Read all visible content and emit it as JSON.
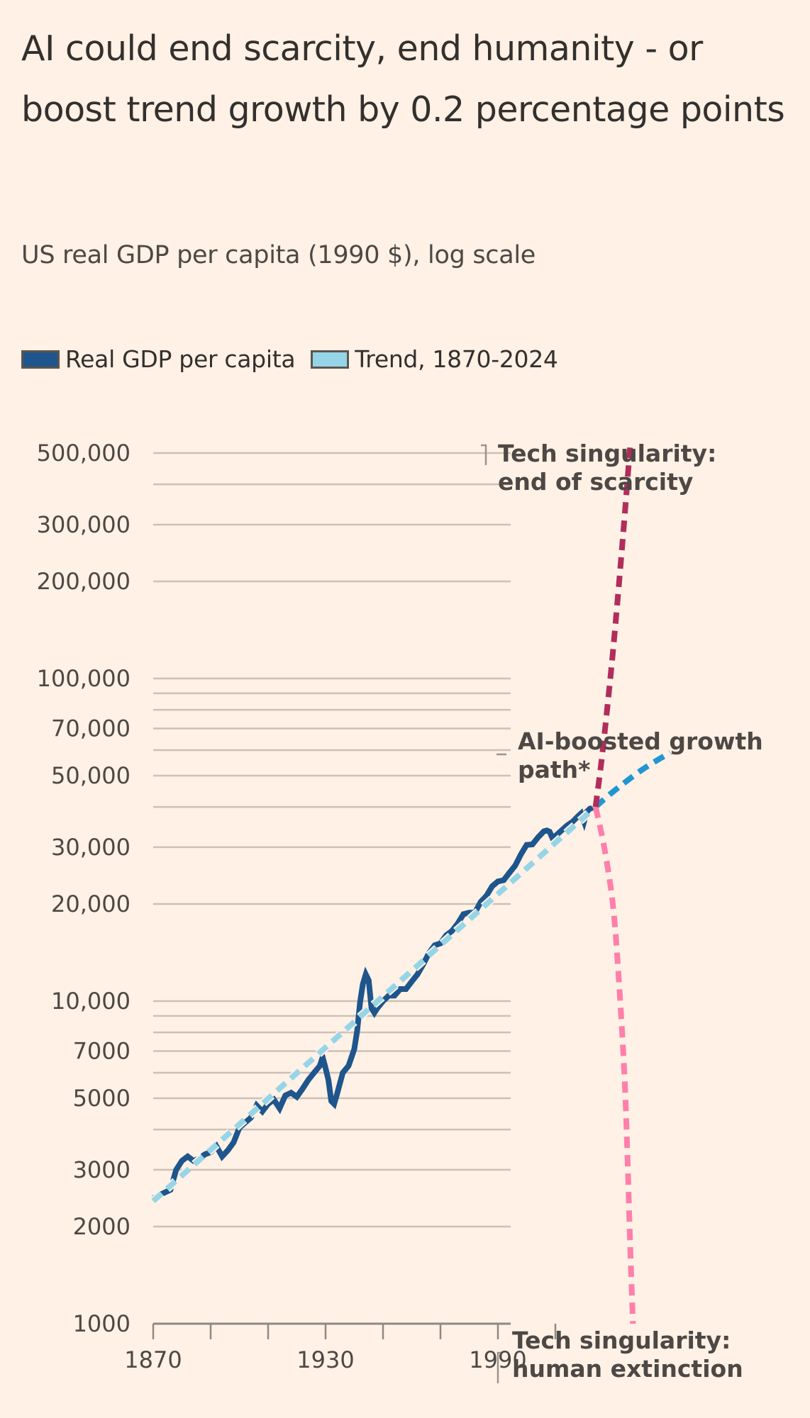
{
  "title": "AI could end scarcity, end humanity - or boost trend growth by 0.2 percentage points",
  "subtitle": "US real GDP per capita (1990 $), log scale",
  "legend": [
    {
      "label": "Real GDP per capita",
      "color": "#1e558c"
    },
    {
      "label": "Trend, 1870-2024",
      "color": "#96d5e8"
    }
  ],
  "colors": {
    "background": "#fff1e5",
    "gridline": "#ccc1b7",
    "axis": "#8f8984",
    "gdp": "#1e558c",
    "trend": "#96d5e8",
    "ai_boosted": "#2196d2",
    "scarcity": "#b12d5b",
    "extinction": "#ff7faa"
  },
  "chart_data": {
    "type": "line",
    "title": "AI could end scarcity, end humanity - or boost trend growth by 0.2 percentage points",
    "subtitle": "US real GDP per capita (1990 $), log scale",
    "xlabel": "",
    "ylabel": "",
    "yscale": "log",
    "xlim": [
      1870,
      2050
    ],
    "ylim": [
      1000,
      500000
    ],
    "grid": true,
    "legend_position": "top-left",
    "x_ticks": [
      1870,
      1890,
      1910,
      1930,
      1950,
      1970,
      1990,
      2010
    ],
    "x_tick_labels": [
      {
        "value": 1870,
        "label": "1870"
      },
      {
        "value": 1930,
        "label": "1930"
      },
      {
        "value": 1990,
        "label": "1990"
      }
    ],
    "y_gridlines": [
      1000,
      2000,
      3000,
      4000,
      5000,
      6000,
      7000,
      8000,
      9000,
      10000,
      20000,
      30000,
      40000,
      50000,
      60000,
      70000,
      80000,
      90000,
      100000,
      200000,
      300000,
      400000,
      500000
    ],
    "y_tick_labels": [
      {
        "value": 500000,
        "label": "500,000"
      },
      {
        "value": 300000,
        "label": "300,000"
      },
      {
        "value": 200000,
        "label": "200,000"
      },
      {
        "value": 100000,
        "label": "100,000"
      },
      {
        "value": 70000,
        "label": "70,000"
      },
      {
        "value": 50000,
        "label": "50,000"
      },
      {
        "value": 30000,
        "label": "30,000"
      },
      {
        "value": 20000,
        "label": "20,000"
      },
      {
        "value": 10000,
        "label": "10,000"
      },
      {
        "value": 7000,
        "label": "7000"
      },
      {
        "value": 5000,
        "label": "5000"
      },
      {
        "value": 3000,
        "label": "3000"
      },
      {
        "value": 2000,
        "label": "2000"
      },
      {
        "value": 1000,
        "label": "1000"
      }
    ],
    "series": [
      {
        "name": "Real GDP per capita",
        "style": "solid",
        "x": [
          1870,
          1872,
          1874,
          1876,
          1878,
          1880,
          1882,
          1884,
          1886,
          1888,
          1890,
          1892,
          1894,
          1896,
          1898,
          1900,
          1902,
          1904,
          1906,
          1908,
          1910,
          1912,
          1914,
          1916,
          1918,
          1920,
          1922,
          1924,
          1926,
          1928,
          1929,
          1930,
          1931,
          1932,
          1933,
          1934,
          1936,
          1938,
          1940,
          1941,
          1942,
          1943,
          1944,
          1945,
          1946,
          1947,
          1948,
          1950,
          1952,
          1954,
          1956,
          1958,
          1960,
          1962,
          1964,
          1966,
          1968,
          1970,
          1972,
          1974,
          1976,
          1978,
          1980,
          1982,
          1984,
          1986,
          1988,
          1990,
          1992,
          1994,
          1996,
          1998,
          2000,
          2002,
          2004,
          2006,
          2007,
          2008,
          2009,
          2010,
          2012,
          2014,
          2016,
          2018,
          2019,
          2020,
          2021,
          2022,
          2024
        ],
        "values": [
          2450,
          2500,
          2550,
          2600,
          3000,
          3200,
          3300,
          3200,
          3250,
          3350,
          3400,
          3550,
          3300,
          3450,
          3650,
          4050,
          4200,
          4350,
          4750,
          4550,
          4800,
          4950,
          4650,
          5100,
          5200,
          5050,
          5350,
          5700,
          6000,
          6300,
          6700,
          6200,
          5700,
          4900,
          4800,
          5150,
          6000,
          6300,
          7100,
          8100,
          9900,
          11300,
          12100,
          11600,
          9500,
          9200,
          9500,
          10000,
          10400,
          10400,
          10900,
          10900,
          11500,
          12100,
          13000,
          14100,
          14900,
          15100,
          16000,
          16500,
          17400,
          18600,
          18800,
          18800,
          20300,
          21200,
          22700,
          23500,
          23700,
          25000,
          26300,
          28500,
          30500,
          30600,
          32200,
          33600,
          33800,
          33500,
          32000,
          32500,
          33700,
          35000,
          36000,
          37500,
          38200,
          36000,
          38700,
          39500,
          40000
        ]
      },
      {
        "name": "Trend, 1870-2024",
        "style": "dashed",
        "x": [
          1870,
          2024
        ],
        "values": [
          2400,
          40000
        ]
      },
      {
        "name": "AI-boosted growth path*",
        "style": "dashed",
        "x": [
          2024,
          2030,
          2040,
          2050
        ],
        "values": [
          40000,
          44500,
          52000,
          59000
        ]
      },
      {
        "name": "Tech singularity: end of scarcity",
        "style": "dashed",
        "x": [
          2024,
          2026,
          2028,
          2030,
          2032,
          2034,
          2036
        ],
        "values": [
          40000,
          55000,
          80000,
          120000,
          190000,
          310000,
          520000
        ]
      },
      {
        "name": "Tech singularity: human extinction",
        "style": "dashed",
        "x": [
          2024,
          2027,
          2030,
          2032,
          2034,
          2035,
          2036,
          2037
        ],
        "values": [
          40000,
          30000,
          20000,
          12000,
          6000,
          3500,
          1800,
          1000
        ]
      }
    ],
    "annotations": [
      {
        "text": [
          "Tech singularity:",
          "end of scarcity"
        ],
        "series": "Tech singularity: end of scarcity"
      },
      {
        "text": [
          "AI-boosted growth",
          "path*"
        ],
        "series": "AI-boosted growth path*"
      },
      {
        "text": [
          "Tech singularity:",
          "human extinction"
        ],
        "series": "Tech singularity: human extinction"
      }
    ]
  }
}
